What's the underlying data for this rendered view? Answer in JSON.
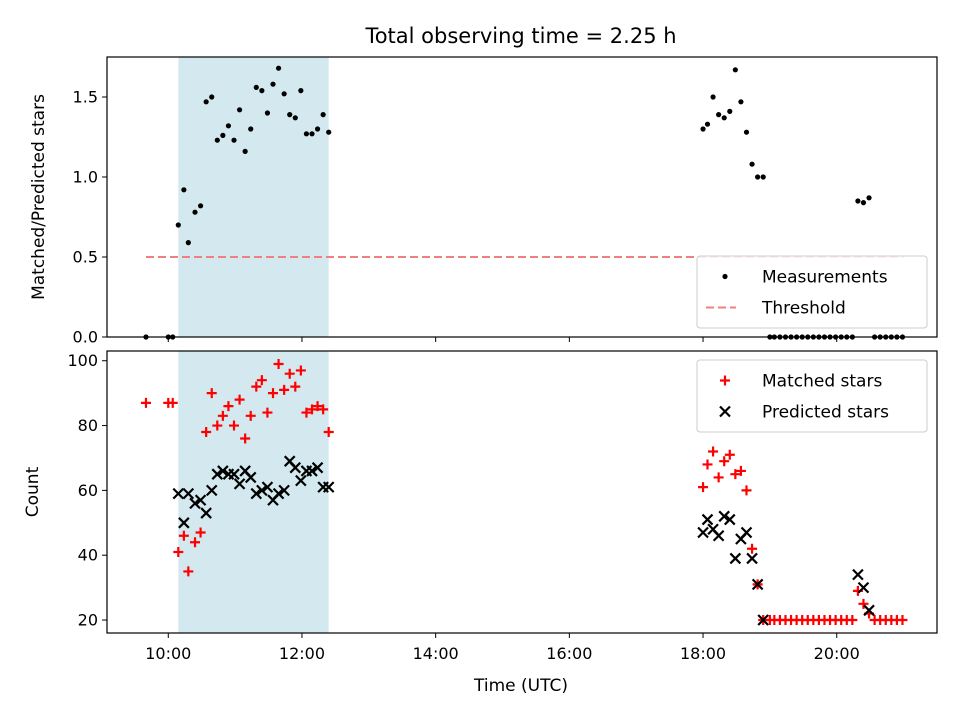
{
  "chart_data": {
    "title": "Total observing time = 2.25 h",
    "xlabel": "Time (UTC)",
    "xticks": [
      "10:00",
      "12:00",
      "14:00",
      "16:00",
      "18:00",
      "20:00"
    ],
    "xlim": [
      "09:05",
      "21:30"
    ],
    "shaded_interval": {
      "start": "10:09",
      "end": "12:24",
      "color": "#d3e9ef"
    },
    "panels": [
      {
        "type": "scatter",
        "ylabel": "Matched/Predicted stars",
        "ylim": [
          0.0,
          1.75
        ],
        "yticks": [
          "0.0",
          "0.5",
          "1.0",
          "1.5"
        ],
        "legend_position": "lower-right",
        "series": [
          {
            "name": "Measurements",
            "marker": "dot",
            "color": "#000000",
            "points": [
              [
                "09:40",
                0.0
              ],
              [
                "10:00",
                0.0
              ],
              [
                "10:04",
                0.0
              ],
              [
                "10:09",
                0.7
              ],
              [
                "10:14",
                0.92
              ],
              [
                "10:18",
                0.59
              ],
              [
                "10:24",
                0.78
              ],
              [
                "10:29",
                0.82
              ],
              [
                "10:34",
                1.47
              ],
              [
                "10:39",
                1.5
              ],
              [
                "10:44",
                1.23
              ],
              [
                "10:49",
                1.26
              ],
              [
                "10:54",
                1.32
              ],
              [
                "10:59",
                1.23
              ],
              [
                "11:04",
                1.42
              ],
              [
                "11:09",
                1.16
              ],
              [
                "11:14",
                1.3
              ],
              [
                "11:19",
                1.56
              ],
              [
                "11:24",
                1.54
              ],
              [
                "11:29",
                1.4
              ],
              [
                "11:34",
                1.58
              ],
              [
                "11:39",
                1.68
              ],
              [
                "11:44",
                1.52
              ],
              [
                "11:49",
                1.39
              ],
              [
                "11:54",
                1.37
              ],
              [
                "11:59",
                1.54
              ],
              [
                "12:04",
                1.27
              ],
              [
                "12:09",
                1.27
              ],
              [
                "12:14",
                1.3
              ],
              [
                "12:19",
                1.39
              ],
              [
                "12:24",
                1.28
              ],
              [
                "18:00",
                1.3
              ],
              [
                "18:04",
                1.33
              ],
              [
                "18:09",
                1.5
              ],
              [
                "18:14",
                1.39
              ],
              [
                "18:19",
                1.37
              ],
              [
                "18:24",
                1.41
              ],
              [
                "18:29",
                1.67
              ],
              [
                "18:34",
                1.47
              ],
              [
                "18:39",
                1.28
              ],
              [
                "18:44",
                1.08
              ],
              [
                "18:49",
                1.0
              ],
              [
                "18:54",
                1.0
              ],
              [
                "19:00",
                0.0
              ],
              [
                "19:04",
                0.0
              ],
              [
                "19:09",
                0.0
              ],
              [
                "19:14",
                0.0
              ],
              [
                "19:19",
                0.0
              ],
              [
                "19:24",
                0.0
              ],
              [
                "19:29",
                0.0
              ],
              [
                "19:34",
                0.0
              ],
              [
                "19:39",
                0.0
              ],
              [
                "19:44",
                0.0
              ],
              [
                "19:49",
                0.0
              ],
              [
                "19:54",
                0.0
              ],
              [
                "19:59",
                0.0
              ],
              [
                "20:04",
                0.0
              ],
              [
                "20:09",
                0.0
              ],
              [
                "20:14",
                0.0
              ],
              [
                "20:19",
                0.85
              ],
              [
                "20:24",
                0.84
              ],
              [
                "20:29",
                0.87
              ],
              [
                "20:34",
                0.0
              ],
              [
                "20:39",
                0.0
              ],
              [
                "20:44",
                0.0
              ],
              [
                "20:49",
                0.0
              ],
              [
                "20:54",
                0.0
              ],
              [
                "20:59",
                0.0
              ]
            ]
          },
          {
            "name": "Threshold",
            "marker": "dashed-line",
            "color": "#f08080",
            "points": [
              [
                "09:40",
                0.5
              ],
              [
                "21:00",
                0.5
              ]
            ]
          }
        ]
      },
      {
        "type": "scatter",
        "ylabel": "Count",
        "ylim": [
          16,
          103
        ],
        "yticks": [
          "20",
          "40",
          "60",
          "80",
          "100"
        ],
        "legend_position": "upper-right",
        "series": [
          {
            "name": "Matched stars",
            "marker": "plus",
            "color": "#ff0000",
            "points": [
              [
                "09:40",
                87
              ],
              [
                "10:00",
                87
              ],
              [
                "10:04",
                87
              ],
              [
                "10:09",
                41
              ],
              [
                "10:14",
                46
              ],
              [
                "10:18",
                35
              ],
              [
                "10:24",
                44
              ],
              [
                "10:29",
                47
              ],
              [
                "10:34",
                78
              ],
              [
                "10:39",
                90
              ],
              [
                "10:44",
                80
              ],
              [
                "10:49",
                83
              ],
              [
                "10:54",
                86
              ],
              [
                "10:59",
                80
              ],
              [
                "11:04",
                88
              ],
              [
                "11:09",
                76
              ],
              [
                "11:14",
                83
              ],
              [
                "11:19",
                92
              ],
              [
                "11:24",
                94
              ],
              [
                "11:29",
                84
              ],
              [
                "11:34",
                90
              ],
              [
                "11:39",
                99
              ],
              [
                "11:44",
                91
              ],
              [
                "11:49",
                96
              ],
              [
                "11:54",
                92
              ],
              [
                "11:59",
                97
              ],
              [
                "12:04",
                84
              ],
              [
                "12:09",
                85
              ],
              [
                "12:14",
                86
              ],
              [
                "12:19",
                85
              ],
              [
                "12:24",
                78
              ],
              [
                "18:00",
                61
              ],
              [
                "18:04",
                68
              ],
              [
                "18:09",
                72
              ],
              [
                "18:14",
                64
              ],
              [
                "18:19",
                69
              ],
              [
                "18:24",
                71
              ],
              [
                "18:29",
                65
              ],
              [
                "18:34",
                66
              ],
              [
                "18:39",
                60
              ],
              [
                "18:44",
                42
              ],
              [
                "18:49",
                31
              ],
              [
                "18:54",
                20
              ],
              [
                "19:00",
                20
              ],
              [
                "19:04",
                20
              ],
              [
                "19:09",
                20
              ],
              [
                "19:14",
                20
              ],
              [
                "19:19",
                20
              ],
              [
                "19:24",
                20
              ],
              [
                "19:29",
                20
              ],
              [
                "19:34",
                20
              ],
              [
                "19:39",
                20
              ],
              [
                "19:44",
                20
              ],
              [
                "19:49",
                20
              ],
              [
                "19:54",
                20
              ],
              [
                "19:59",
                20
              ],
              [
                "20:04",
                20
              ],
              [
                "20:09",
                20
              ],
              [
                "20:14",
                20
              ],
              [
                "20:19",
                29
              ],
              [
                "20:24",
                25
              ],
              [
                "20:29",
                22
              ],
              [
                "20:34",
                20
              ],
              [
                "20:39",
                20
              ],
              [
                "20:44",
                20
              ],
              [
                "20:49",
                20
              ],
              [
                "20:54",
                20
              ],
              [
                "20:59",
                20
              ]
            ]
          },
          {
            "name": "Predicted stars",
            "marker": "x",
            "color": "#000000",
            "points": [
              [
                "10:09",
                59
              ],
              [
                "10:14",
                50
              ],
              [
                "10:18",
                59
              ],
              [
                "10:24",
                56
              ],
              [
                "10:29",
                57
              ],
              [
                "10:34",
                53
              ],
              [
                "10:39",
                60
              ],
              [
                "10:44",
                65
              ],
              [
                "10:49",
                66
              ],
              [
                "10:54",
                65
              ],
              [
                "10:59",
                65
              ],
              [
                "11:04",
                62
              ],
              [
                "11:09",
                66
              ],
              [
                "11:14",
                64
              ],
              [
                "11:19",
                59
              ],
              [
                "11:24",
                60
              ],
              [
                "11:29",
                61
              ],
              [
                "11:34",
                57
              ],
              [
                "11:39",
                59
              ],
              [
                "11:44",
                60
              ],
              [
                "11:49",
                69
              ],
              [
                "11:54",
                67
              ],
              [
                "11:59",
                63
              ],
              [
                "12:04",
                66
              ],
              [
                "12:09",
                66
              ],
              [
                "12:14",
                67
              ],
              [
                "12:19",
                61
              ],
              [
                "12:24",
                61
              ],
              [
                "18:00",
                47
              ],
              [
                "18:04",
                51
              ],
              [
                "18:09",
                48
              ],
              [
                "18:14",
                46
              ],
              [
                "18:19",
                52
              ],
              [
                "18:24",
                51
              ],
              [
                "18:29",
                39
              ],
              [
                "18:34",
                45
              ],
              [
                "18:39",
                47
              ],
              [
                "18:44",
                39
              ],
              [
                "18:49",
                31
              ],
              [
                "18:54",
                20
              ],
              [
                "20:19",
                34
              ],
              [
                "20:24",
                30
              ],
              [
                "20:29",
                23
              ]
            ]
          }
        ]
      }
    ]
  }
}
